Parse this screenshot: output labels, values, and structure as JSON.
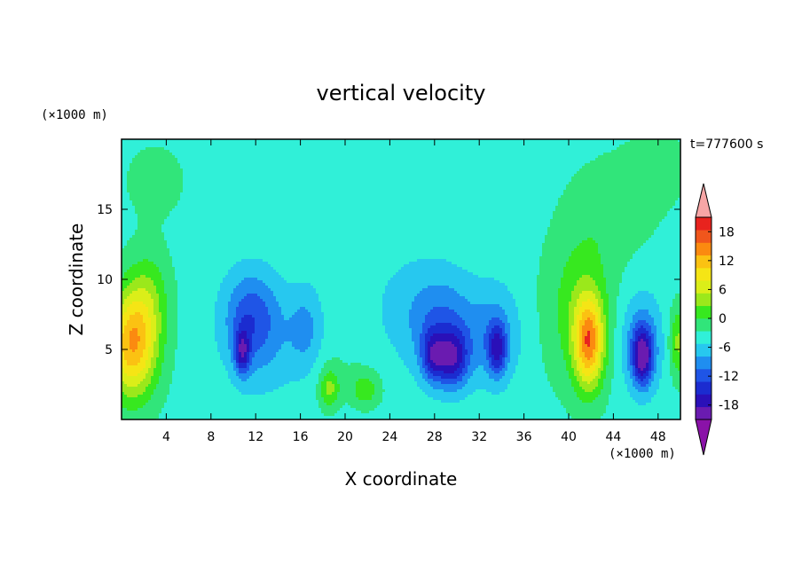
{
  "chart_data": {
    "type": "heatmap",
    "title": "vertical velocity",
    "xlabel": "X coordinate",
    "ylabel": "Z coordinate",
    "x_unit": "(×1000 m)",
    "y_unit": "(×1000 m)",
    "time_label": "t=777600 s",
    "xlim": [
      0,
      50
    ],
    "ylim": [
      0,
      20
    ],
    "x_ticks": [
      4,
      8,
      12,
      16,
      20,
      24,
      28,
      32,
      36,
      40,
      44,
      48
    ],
    "y_ticks": [
      5,
      10,
      15
    ],
    "colorbar": {
      "levels": [
        -21,
        -18,
        -15,
        -12,
        -9,
        -6,
        -3,
        0,
        3,
        6,
        9,
        12,
        15,
        18,
        21
      ],
      "labels": [
        18,
        12,
        6,
        0,
        -6,
        -12,
        -18
      ],
      "colors": [
        "#6a1bb0",
        "#2a10b8",
        "#1b2cd0",
        "#1f55e6",
        "#1f8ef0",
        "#27c8ef",
        "#30f0d8",
        "#31e57a",
        "#37e81f",
        "#9be81b",
        "#dbee19",
        "#f5e515",
        "#fbc212",
        "#fb8a10",
        "#f0561c",
        "#e8231e"
      ],
      "over_color": "#f7a6a6",
      "under_color": "#8a12a8"
    },
    "background_value": -1,
    "features": [
      {
        "x": 1.0,
        "z": 5.4,
        "value": 19,
        "sx": 2.2,
        "sz": 3.8
      },
      {
        "x": 2.5,
        "z": 9.0,
        "value": 5,
        "sx": 1.8,
        "sz": 3.2
      },
      {
        "x": 3.0,
        "z": 17.0,
        "value": 2,
        "sx": 3.0,
        "sz": 3.0
      },
      {
        "x": 10.8,
        "z": 4.8,
        "value": -12,
        "sx": 0.7,
        "sz": 1.6
      },
      {
        "x": 11.5,
        "z": 7.5,
        "value": -8,
        "sx": 2.4,
        "sz": 3.2
      },
      {
        "x": 12.8,
        "z": 5.5,
        "value": -4,
        "sx": 3.5,
        "sz": 4.0
      },
      {
        "x": 18.6,
        "z": 2.2,
        "value": 8,
        "sx": 0.9,
        "sz": 1.4
      },
      {
        "x": 21.8,
        "z": 2.1,
        "value": 6,
        "sx": 1.3,
        "sz": 1.2
      },
      {
        "x": 20.0,
        "z": 4.0,
        "value": 1,
        "sx": 3.0,
        "sz": 2.0
      },
      {
        "x": 16.5,
        "z": 6.5,
        "value": -5,
        "sx": 1.5,
        "sz": 3.0
      },
      {
        "x": 29.6,
        "z": 4.3,
        "value": -13,
        "sx": 1.4,
        "sz": 2.0
      },
      {
        "x": 27.8,
        "z": 4.5,
        "value": -10,
        "sx": 1.0,
        "sz": 1.8
      },
      {
        "x": 29.0,
        "z": 6.5,
        "value": -7,
        "sx": 3.0,
        "sz": 3.6
      },
      {
        "x": 33.6,
        "z": 5.0,
        "value": -11,
        "sx": 0.8,
        "sz": 1.8
      },
      {
        "x": 33.5,
        "z": 6.0,
        "value": -6,
        "sx": 2.2,
        "sz": 3.5
      },
      {
        "x": 26.0,
        "z": 8.0,
        "value": -3,
        "sx": 4.0,
        "sz": 4.0
      },
      {
        "x": 41.8,
        "z": 5.5,
        "value": 18,
        "sx": 1.3,
        "sz": 3.2
      },
      {
        "x": 41.0,
        "z": 8.0,
        "value": 6,
        "sx": 3.0,
        "sz": 5.5
      },
      {
        "x": 44.0,
        "z": 15.0,
        "value": 3,
        "sx": 3.5,
        "sz": 3.5
      },
      {
        "x": 46.6,
        "z": 4.5,
        "value": -15,
        "sx": 0.9,
        "sz": 2.0
      },
      {
        "x": 46.5,
        "z": 5.5,
        "value": -7,
        "sx": 1.9,
        "sz": 3.5
      },
      {
        "x": 49.8,
        "z": 5.5,
        "value": 8,
        "sx": 0.8,
        "sz": 2.5
      },
      {
        "x": 48.0,
        "z": 18.0,
        "value": 2,
        "sx": 3.0,
        "sz": 3.0
      }
    ]
  }
}
